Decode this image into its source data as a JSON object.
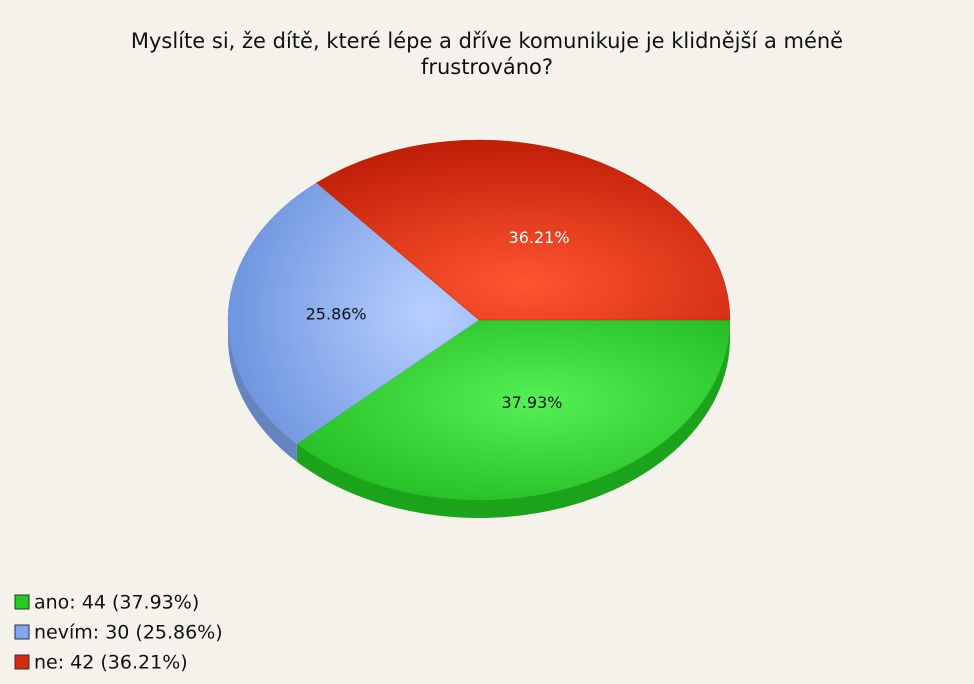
{
  "chart_data": {
    "type": "pie",
    "title": [
      "Myslíte si, že dítě, které lépe a dříve komunikuje je klidnější a méně",
      "frustrováno?"
    ],
    "categories": [
      "ano",
      "nevím",
      "ne"
    ],
    "values": [
      37.93,
      25.86,
      36.21
    ],
    "value_labels": [
      "37.93%",
      "25.86%",
      "36.21%"
    ],
    "legend_labels": [
      "ano: 44 (37.93%)",
      "nevím: 30 (25.86%)",
      "ne: 42 (36.21%)"
    ],
    "colors": [
      "#22cc22",
      "#7fa6ee",
      "#d42a10"
    ],
    "legend": "bottom-left"
  }
}
